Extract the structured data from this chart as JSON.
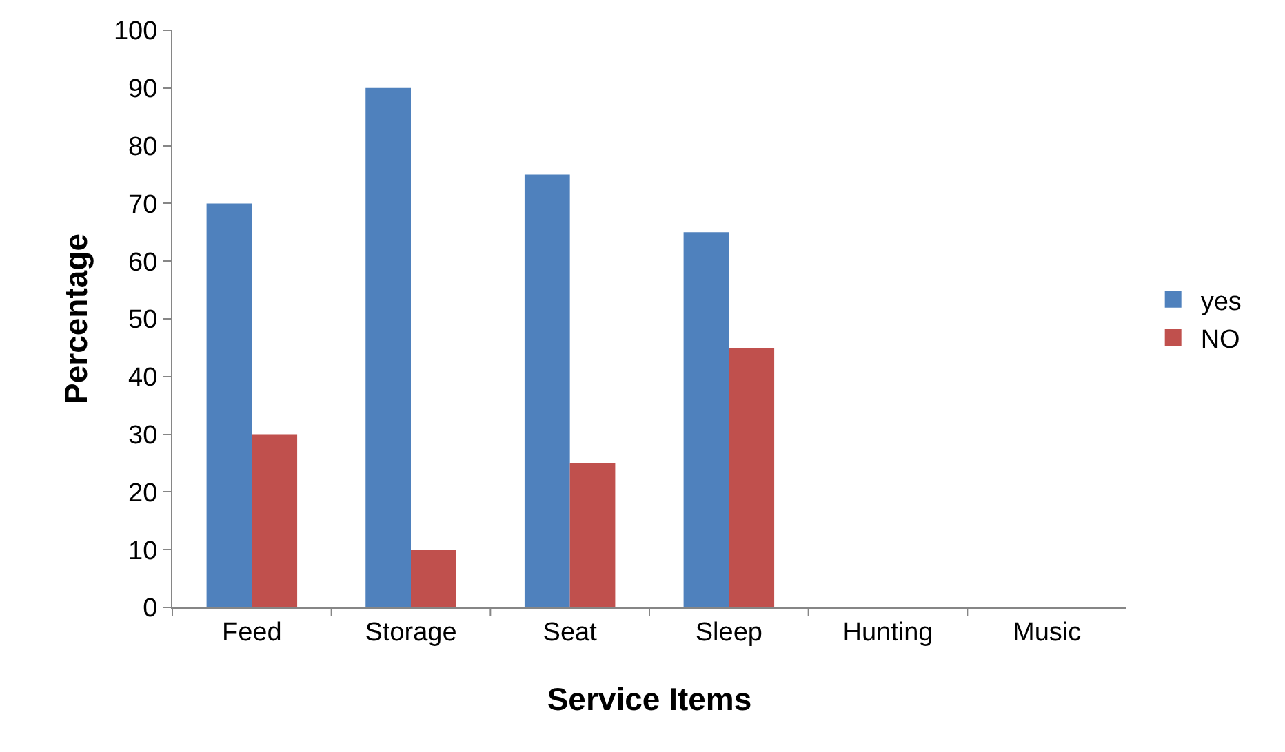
{
  "chart_data": {
    "type": "bar",
    "xlabel": "Service Items",
    "ylabel": "Percentage",
    "categories": [
      "Feed",
      "Storage",
      "Seat",
      "Sleep",
      "Hunting",
      "Music"
    ],
    "series": [
      {
        "name": "yes",
        "color": "#4f81bd",
        "values": [
          70,
          90,
          75,
          65,
          null,
          null
        ]
      },
      {
        "name": "NO",
        "color": "#c0504d",
        "values": [
          30,
          10,
          25,
          45,
          null,
          null
        ]
      }
    ],
    "ylim": [
      0,
      100
    ],
    "yticks": [
      0,
      10,
      20,
      30,
      40,
      50,
      60,
      70,
      80,
      90,
      100
    ],
    "legend": "right"
  }
}
